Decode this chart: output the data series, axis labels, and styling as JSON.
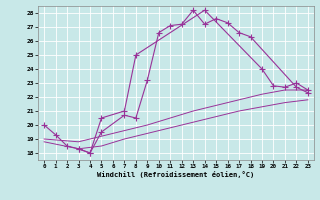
{
  "xlabel": "Windchill (Refroidissement éolien,°C)",
  "bg_color": "#c8e8e8",
  "grid_color": "#ffffff",
  "line_color": "#993399",
  "ylim": [
    17.5,
    28.5
  ],
  "xlim": [
    -0.5,
    23.5
  ],
  "yticks": [
    18,
    19,
    20,
    21,
    22,
    23,
    24,
    25,
    26,
    27,
    28
  ],
  "xticks": [
    0,
    1,
    2,
    3,
    4,
    5,
    6,
    7,
    8,
    9,
    10,
    11,
    12,
    13,
    14,
    15,
    16,
    17,
    18,
    19,
    20,
    21,
    22,
    23
  ],
  "series": [
    {
      "x": [
        0,
        1,
        2,
        3,
        4,
        5,
        7,
        8,
        9,
        10,
        11,
        12,
        13,
        14,
        15,
        16,
        17,
        18,
        22,
        23
      ],
      "y": [
        20.0,
        19.3,
        18.5,
        18.3,
        18.0,
        19.5,
        20.7,
        20.5,
        23.2,
        26.6,
        27.1,
        27.2,
        28.2,
        27.2,
        27.6,
        27.3,
        26.6,
        26.3,
        22.7,
        22.3
      ],
      "marker": "+",
      "markersize": 4,
      "linewidth": 0.8,
      "linestyle": "-"
    },
    {
      "x": [
        3,
        4,
        5,
        7,
        8,
        14,
        19,
        20,
        21,
        22,
        23
      ],
      "y": [
        18.3,
        18.0,
        20.5,
        21.0,
        25.0,
        28.2,
        24.0,
        22.8,
        22.7,
        23.0,
        22.5
      ],
      "marker": "+",
      "markersize": 4,
      "linewidth": 0.8,
      "linestyle": "-"
    },
    {
      "x": [
        0,
        3,
        5,
        7,
        9,
        11,
        13,
        15,
        17,
        19,
        21,
        23
      ],
      "y": [
        19.0,
        18.8,
        19.2,
        19.6,
        20.0,
        20.5,
        21.0,
        21.4,
        21.8,
        22.2,
        22.5,
        22.5
      ],
      "marker": null,
      "markersize": 0,
      "linewidth": 0.7,
      "linestyle": "-"
    },
    {
      "x": [
        0,
        3,
        5,
        7,
        9,
        11,
        13,
        15,
        17,
        19,
        21,
        23
      ],
      "y": [
        18.8,
        18.3,
        18.5,
        19.0,
        19.4,
        19.8,
        20.2,
        20.6,
        21.0,
        21.3,
        21.6,
        21.8
      ],
      "marker": null,
      "markersize": 0,
      "linewidth": 0.7,
      "linestyle": "-"
    }
  ]
}
